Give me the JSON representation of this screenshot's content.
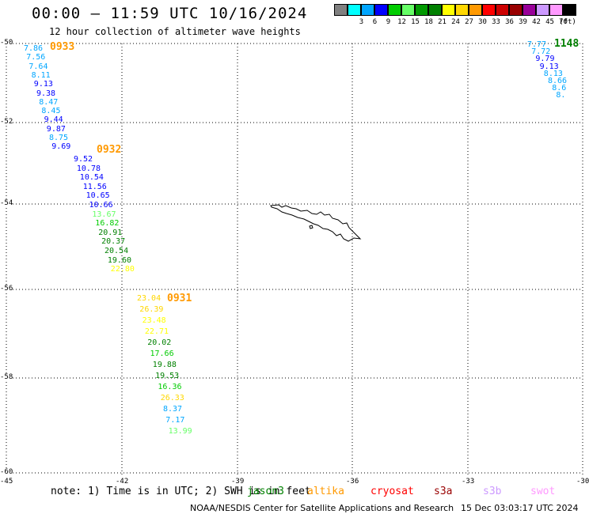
{
  "header": {
    "title": "00:00 – 11:59 UTC 10/16/2024",
    "subtitle": "12 hour collection of altimeter wave heights"
  },
  "legend": {
    "unit": "(ft)",
    "items": [
      {
        "label": "",
        "color": "#808080"
      },
      {
        "label": "3",
        "color": "#00ffff"
      },
      {
        "label": "6",
        "color": "#00a6ff"
      },
      {
        "label": "9",
        "color": "#0000ff"
      },
      {
        "label": "12",
        "color": "#00cc00"
      },
      {
        "label": "15",
        "color": "#66ff66"
      },
      {
        "label": "18",
        "color": "#009900"
      },
      {
        "label": "21",
        "color": "#008000"
      },
      {
        "label": "24",
        "color": "#ffff00"
      },
      {
        "label": "27",
        "color": "#ffd700"
      },
      {
        "label": "30",
        "color": "#ff9900"
      },
      {
        "label": "33",
        "color": "#ff0000"
      },
      {
        "label": "36",
        "color": "#cc0000"
      },
      {
        "label": "39",
        "color": "#990000"
      },
      {
        "label": "42",
        "color": "#990099"
      },
      {
        "label": "45",
        "color": "#cc99ff"
      },
      {
        "label": "70",
        "color": "#ff99ff"
      },
      {
        "label": "",
        "color": "#000000"
      }
    ]
  },
  "axes": {
    "lat_labels": [
      "-50",
      "-52",
      "-54",
      "-56",
      "-58",
      "-60"
    ],
    "lon_labels": [
      "-45",
      "-42",
      "-39",
      "-36",
      "-33",
      "-30"
    ]
  },
  "tracks": [
    {
      "time_label": "0933",
      "time_color": "#ff9900",
      "points": [
        {
          "v": "7.86",
          "c": "#00a6ff"
        },
        {
          "v": "7.56",
          "c": "#00a6ff"
        },
        {
          "v": "7.64",
          "c": "#00a6ff"
        },
        {
          "v": "8.11",
          "c": "#00a6ff"
        },
        {
          "v": "9.13",
          "c": "#0000ff"
        },
        {
          "v": "9.38",
          "c": "#0000ff"
        },
        {
          "v": "8.47",
          "c": "#00a6ff"
        },
        {
          "v": "8.45",
          "c": "#00a6ff"
        },
        {
          "v": "9.44",
          "c": "#0000ff"
        },
        {
          "v": "9.87",
          "c": "#0000ff"
        },
        {
          "v": "8.75",
          "c": "#00a6ff"
        },
        {
          "v": "9.69",
          "c": "#0000ff"
        }
      ]
    },
    {
      "time_label": "0932",
      "time_color": "#ff9900",
      "points": [
        {
          "v": "9.52",
          "c": "#0000ff"
        },
        {
          "v": "10.78",
          "c": "#0000ff"
        },
        {
          "v": "10.54",
          "c": "#0000ff"
        },
        {
          "v": "11.56",
          "c": "#0000ff"
        },
        {
          "v": "10.65",
          "c": "#0000ff"
        },
        {
          "v": "10.66",
          "c": "#0000ff"
        },
        {
          "v": "13.67",
          "c": "#66ff66"
        },
        {
          "v": "16.82",
          "c": "#00cc00"
        },
        {
          "v": "20.91",
          "c": "#008000"
        },
        {
          "v": "20.37",
          "c": "#008000"
        },
        {
          "v": "20.54",
          "c": "#008000"
        },
        {
          "v": "19.60",
          "c": "#008000"
        },
        {
          "v": "22.80",
          "c": "#ffff00"
        }
      ]
    },
    {
      "time_label": "0931",
      "time_color": "#ff9900",
      "points": [
        {
          "v": "23.04",
          "c": "#ffd700"
        },
        {
          "v": "26.39",
          "c": "#ffd700"
        },
        {
          "v": "23.48",
          "c": "#ffff00"
        },
        {
          "v": "22.71",
          "c": "#ffff00"
        },
        {
          "v": "20.02",
          "c": "#008000"
        },
        {
          "v": "17.66",
          "c": "#00cc00"
        },
        {
          "v": "19.88",
          "c": "#008000"
        },
        {
          "v": "19.53",
          "c": "#008000"
        },
        {
          "v": "16.36",
          "c": "#00cc00"
        },
        {
          "v": "26.33",
          "c": "#ffd700"
        },
        {
          "v": "8.37",
          "c": "#00a6ff"
        },
        {
          "v": "7.17",
          "c": "#00a6ff"
        },
        {
          "v": "13.99",
          "c": "#66ff66"
        }
      ]
    },
    {
      "time_label": "1148",
      "time_color": "#008000",
      "points": [
        {
          "v": "7.77",
          "c": "#00a6ff"
        },
        {
          "v": "7.72",
          "c": "#00a6ff"
        },
        {
          "v": "9.79",
          "c": "#0000ff"
        },
        {
          "v": "9.13",
          "c": "#0000ff"
        },
        {
          "v": "8.13",
          "c": "#00a6ff"
        },
        {
          "v": "8.66",
          "c": "#00a6ff"
        },
        {
          "v": "8.6",
          "c": "#00a6ff"
        },
        {
          "v": "8.",
          "c": "#00a6ff"
        }
      ]
    }
  ],
  "footer": {
    "note": "note: 1) Time is in UTC; 2) SWH is in feet",
    "satellites": [
      {
        "name": "jason3",
        "color": "#008000"
      },
      {
        "name": "altika",
        "color": "#ff9900"
      },
      {
        "name": "cryosat",
        "color": "#ff0000"
      },
      {
        "name": "s3a",
        "color": "#990000"
      },
      {
        "name": "s3b",
        "color": "#cc99ff"
      },
      {
        "name": "swot",
        "color": "#ff99ff"
      }
    ],
    "credit": "NOAA/NESDIS Center for Satellite Applications and Research",
    "timestamp": "15 Dec 03:03:17 UTC 2024"
  }
}
